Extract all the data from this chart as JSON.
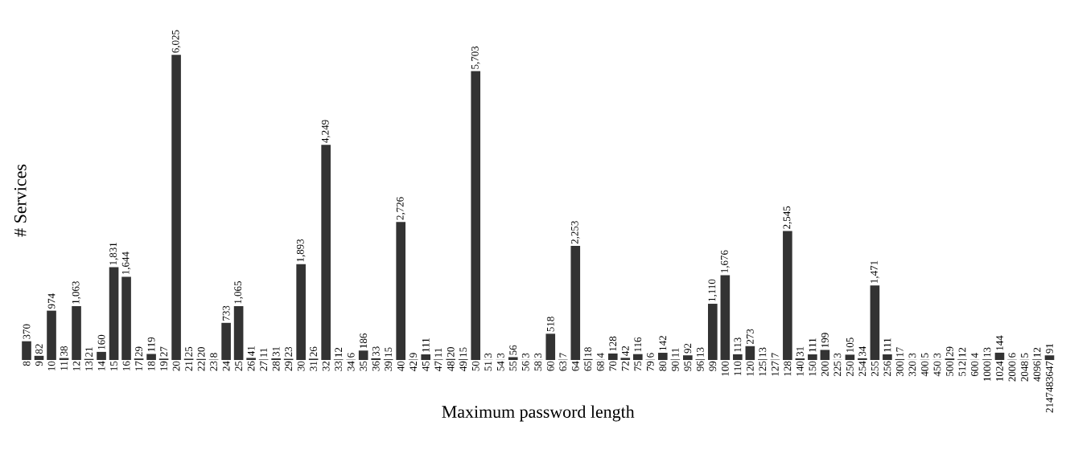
{
  "chart_data": {
    "type": "bar",
    "xlabel": "Maximum password length",
    "ylabel": "# Services",
    "color": "#333333",
    "categories": [
      "8",
      "9",
      "10",
      "11",
      "12",
      "13",
      "14",
      "15",
      "16",
      "17",
      "18",
      "19",
      "20",
      "21",
      "22",
      "23",
      "24",
      "25",
      "26",
      "27",
      "28",
      "29",
      "30",
      "31",
      "32",
      "33",
      "34",
      "35",
      "36",
      "39",
      "40",
      "42",
      "45",
      "47",
      "48",
      "49",
      "50",
      "51",
      "54",
      "55",
      "56",
      "58",
      "60",
      "63",
      "64",
      "65",
      "68",
      "70",
      "72",
      "75",
      "79",
      "80",
      "90",
      "95",
      "96",
      "99",
      "100",
      "110",
      "120",
      "125",
      "127",
      "128",
      "140",
      "150",
      "200",
      "225",
      "250",
      "254",
      "255",
      "256",
      "300",
      "320",
      "400",
      "450",
      "500",
      "512",
      "600",
      "1000",
      "1024",
      "2000",
      "2048",
      "4096",
      "2147483647"
    ],
    "values": [
      370,
      82,
      974,
      38,
      1063,
      21,
      160,
      1831,
      1644,
      29,
      119,
      27,
      6025,
      25,
      20,
      8,
      733,
      1065,
      41,
      11,
      31,
      23,
      1893,
      26,
      4249,
      12,
      6,
      186,
      33,
      15,
      2726,
      9,
      111,
      11,
      20,
      15,
      5703,
      3,
      3,
      56,
      3,
      3,
      518,
      7,
      2253,
      18,
      4,
      128,
      42,
      116,
      6,
      142,
      11,
      92,
      13,
      1110,
      1676,
      113,
      273,
      13,
      7,
      2545,
      31,
      111,
      199,
      3,
      105,
      34,
      1471,
      111,
      17,
      3,
      5,
      3,
      29,
      12,
      4,
      13,
      144,
      6,
      5,
      12,
      91
    ],
    "value_labels": [
      "370",
      "82",
      "974",
      "38",
      "1,063",
      "21",
      "160",
      "1,831",
      "1,644",
      "29",
      "119",
      "27",
      "6,025",
      "25",
      "20",
      "8",
      "733",
      "1,065",
      "41",
      "11",
      "31",
      "23",
      "1,893",
      "26",
      "4,249",
      "12",
      "6",
      "186",
      "33",
      "15",
      "2,726",
      "9",
      "111",
      "11",
      "20",
      "15",
      "5,703",
      "3",
      "3",
      "56",
      "3",
      "3",
      "518",
      "7",
      "2,253",
      "18",
      "4",
      "128",
      "42",
      "116",
      "6",
      "142",
      "11",
      "92",
      "13",
      "1,110",
      "1,676",
      "113",
      "273",
      "13",
      "7",
      "2,545",
      "31",
      "111",
      "199",
      "3",
      "105",
      "34",
      "1,471",
      "111",
      "17",
      "3",
      "5",
      "3",
      "29",
      "12",
      "4",
      "13",
      "144",
      "6",
      "5",
      "12",
      "91"
    ]
  }
}
